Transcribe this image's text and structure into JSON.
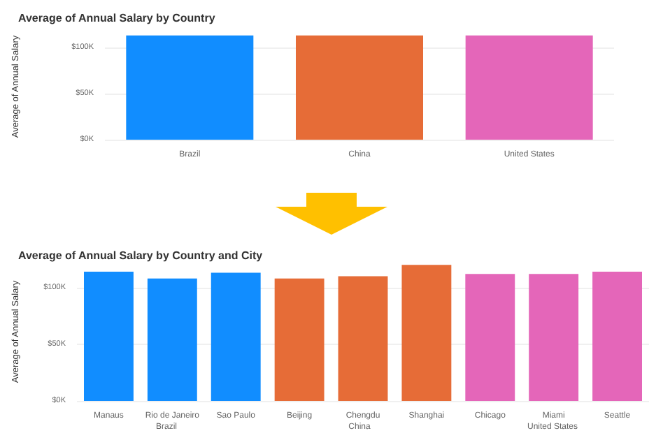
{
  "chart_data": [
    {
      "type": "bar",
      "title": "Average of Annual Salary by Country",
      "ylabel": "Average of Annual Salary",
      "categories": [
        "Brazil",
        "China",
        "United States"
      ],
      "values": [
        113000,
        113000,
        113000
      ],
      "colors": [
        "#118dff",
        "#e66c37",
        "#e466b9"
      ],
      "ylim": [
        0,
        115000
      ],
      "yticks": [
        {
          "value": 0,
          "label": "$0K"
        },
        {
          "value": 50000,
          "label": "$50K"
        },
        {
          "value": 100000,
          "label": "$100K"
        }
      ],
      "grid": "y"
    },
    {
      "type": "bar",
      "title": "Average of Annual Salary by Country and City",
      "ylabel": "Average of Annual Salary",
      "categories": [
        "Manaus",
        "Rio de Janeiro",
        "Sao Paulo",
        "Beijing",
        "Chengdu",
        "Shanghai",
        "Chicago",
        "Miami",
        "Seattle"
      ],
      "values": [
        114000,
        108000,
        113000,
        108000,
        110000,
        120000,
        112000,
        112000,
        114000
      ],
      "colors": [
        "#118dff",
        "#118dff",
        "#118dff",
        "#e66c37",
        "#e66c37",
        "#e66c37",
        "#e466b9",
        "#e466b9",
        "#e466b9"
      ],
      "annotations": [
        "Brazil",
        "China",
        "United States"
      ],
      "ylim": [
        0,
        122000
      ],
      "yticks": [
        {
          "value": 0,
          "label": "$0K"
        },
        {
          "value": 50000,
          "label": "$50K"
        },
        {
          "value": 100000,
          "label": "$100K"
        }
      ],
      "grid": "y"
    }
  ]
}
